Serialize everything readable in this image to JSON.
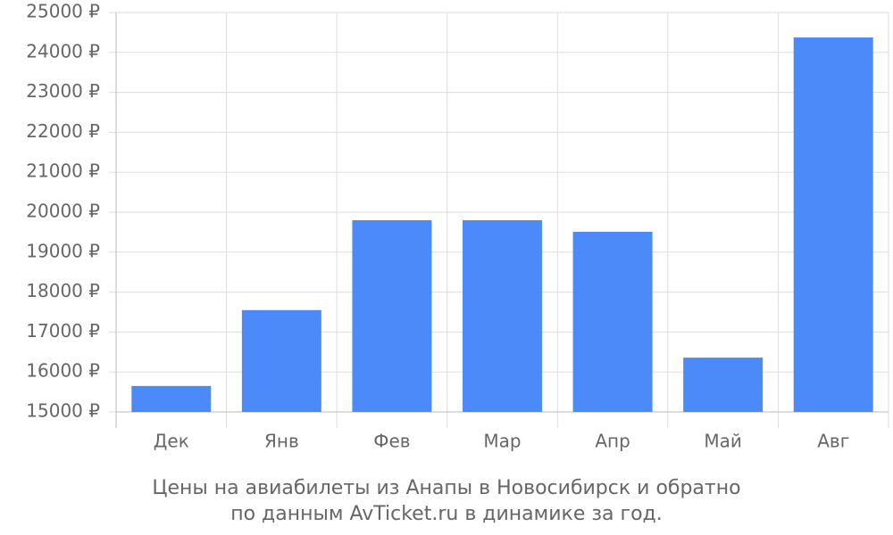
{
  "chart_data": {
    "type": "bar",
    "title": [
      "Цены на авиабилеты из Анапы в Новосибирск и обратно",
      "по данным AvTicket.ru в динамике за год."
    ],
    "categories": [
      "Дек",
      "Янв",
      "Фев",
      "Мар",
      "Апр",
      "Май",
      "Авг"
    ],
    "values": [
      15650,
      17550,
      19800,
      19800,
      19510,
      16360,
      24375
    ],
    "color": "#4d8af9",
    "ylim": [
      15000,
      25000
    ],
    "yticks": [
      {
        "value": 15000,
        "label": "15000 ₽"
      },
      {
        "value": 16000,
        "label": "16000 ₽"
      },
      {
        "value": 17000,
        "label": "17000 ₽"
      },
      {
        "value": 18000,
        "label": "18000 ₽"
      },
      {
        "value": 19000,
        "label": "19000 ₽"
      },
      {
        "value": 20000,
        "label": "20000 ₽"
      },
      {
        "value": 21000,
        "label": "21000 ₽"
      },
      {
        "value": 22000,
        "label": "22000 ₽"
      },
      {
        "value": 23000,
        "label": "23000 ₽"
      },
      {
        "value": 24000,
        "label": "24000 ₽"
      },
      {
        "value": 25000,
        "label": "25000 ₽"
      }
    ],
    "grid": true
  }
}
